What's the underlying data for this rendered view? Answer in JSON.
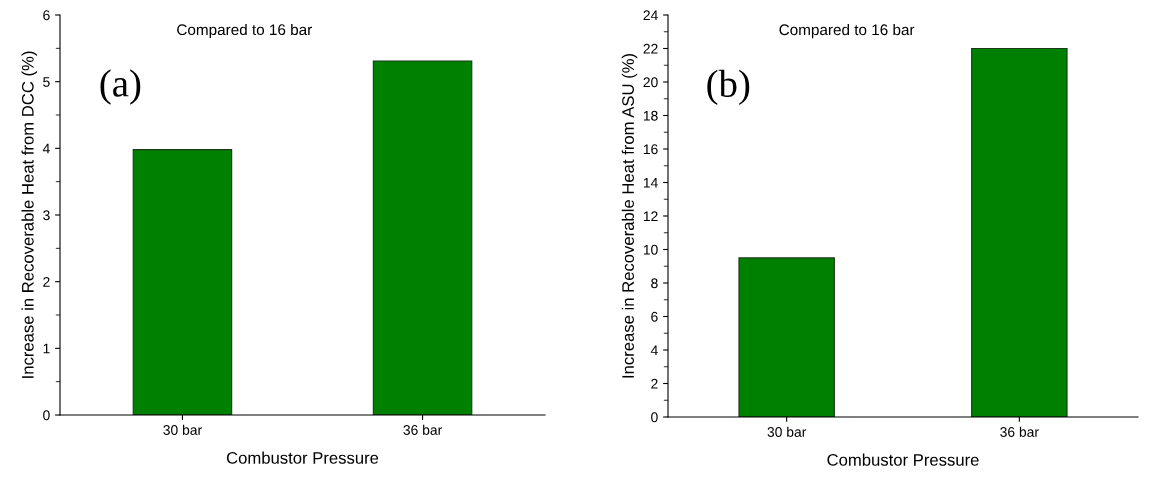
{
  "chart_data": [
    {
      "type": "bar",
      "categories": [
        "30 bar",
        "36 bar"
      ],
      "values": [
        3.98,
        5.31
      ],
      "color": "#008000",
      "xlabel": "Combustor Pressure",
      "ylabel": "Increase in Recoverable Heat from DCC (%)",
      "ylim": [
        0,
        6
      ],
      "yticks": [
        0,
        1,
        2,
        3,
        4,
        5,
        6
      ],
      "annotations": [
        "Compared to 16 bar",
        "(a)"
      ],
      "grid": false,
      "legend": false
    },
    {
      "type": "bar",
      "categories": [
        "30 bar",
        "36 bar"
      ],
      "values": [
        9.5,
        22.0
      ],
      "color": "#008000",
      "xlabel": "Combustor Pressure",
      "ylabel": "Increase in Recoverable Heat from ASU (%)",
      "ylim": [
        0,
        24
      ],
      "yticks": [
        0,
        2,
        4,
        6,
        8,
        10,
        12,
        14,
        16,
        18,
        20,
        22,
        24
      ],
      "annotations": [
        "Compared to 16 bar",
        "(b)"
      ],
      "grid": false,
      "legend": false
    }
  ]
}
